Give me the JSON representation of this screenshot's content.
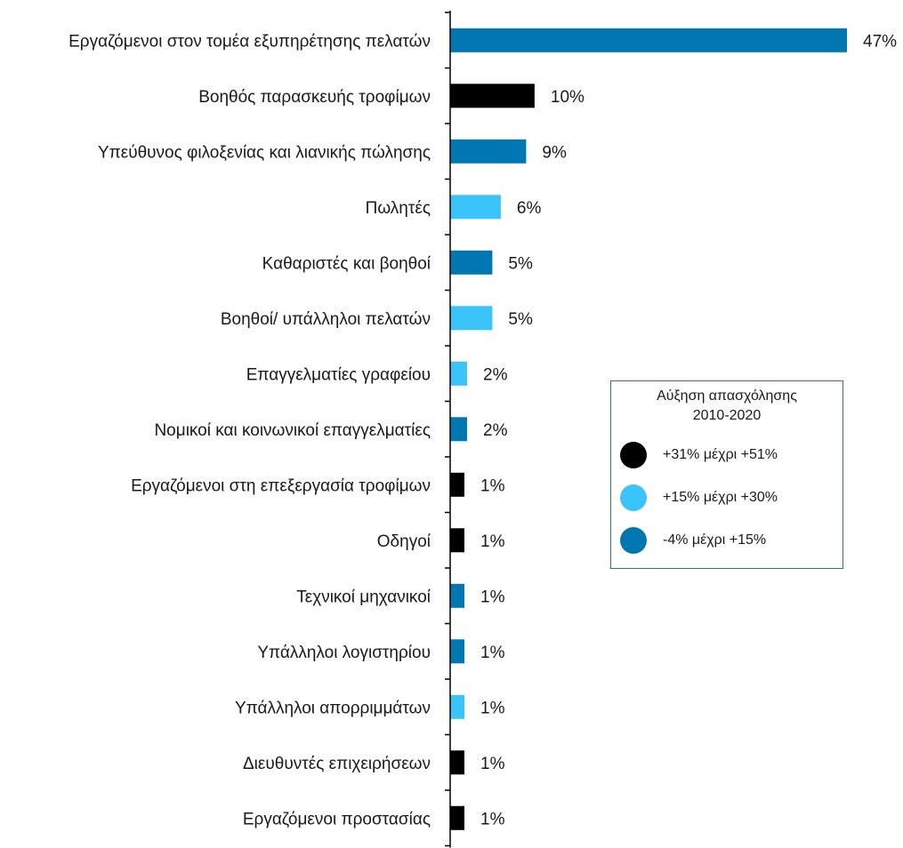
{
  "chart_data": {
    "type": "bar",
    "orientation": "horizontal",
    "categories": [
      "Εργαζόμενοι στον τομέα εξυπηρέτησης πελατών",
      "Βοηθός παρασκευής τροφίμων",
      "Υπεύθυνος φιλοξενίας και λιανικής πώλησης",
      "Πωλητές",
      "Καθαριστές και βοηθοί",
      "Βοηθοί/ υπάλληλοι πελατών",
      "Επαγγελματίες γραφείου",
      "Νομικοί και κοινωνικοί επαγγελματίες",
      "Εργαζόμενοι στη επεξεργασία τροφίμων",
      "Οδηγοί",
      "Τεχνικοί μηχανικοί",
      "Υπάλληλοι λογιστηρίου",
      "Υπάλληλοι απορριμμάτων",
      "Διευθυντές επιχειρήσεων",
      "Εργαζόμενοι προστασίας"
    ],
    "values": [
      47,
      10,
      9,
      6,
      5,
      5,
      2,
      2,
      1,
      1,
      1,
      1,
      1,
      1,
      1
    ],
    "value_labels": [
      "47%",
      "10%",
      "9%",
      "6%",
      "5%",
      "5%",
      "2%",
      "2%",
      "1%",
      "1%",
      "1%",
      "1%",
      "1%",
      "1%",
      "1%"
    ],
    "groups": [
      "mid",
      "high",
      "mid",
      "low",
      "mid",
      "low",
      "low",
      "mid",
      "high",
      "high",
      "mid",
      "mid",
      "low",
      "high",
      "high"
    ],
    "xlim": [
      0,
      47
    ],
    "title": "",
    "xlabel": "",
    "ylabel": "",
    "grid": false,
    "legend_placement": "right"
  },
  "colors": {
    "high": "#000000",
    "low": "#3ac4fa",
    "mid": "#0077b0",
    "axis": "#000000",
    "legend_border": "#3d6e7f"
  },
  "legend": {
    "title_line1": "Αύξηση απασχόλησης",
    "title_line2": "2010-2020",
    "items": [
      {
        "key": "high",
        "label": "+31% μέχρι +51%"
      },
      {
        "key": "low",
        "label": "+15% μέχρι +30%"
      },
      {
        "key": "mid",
        "label": "-4% μέχρι +15%"
      }
    ]
  }
}
